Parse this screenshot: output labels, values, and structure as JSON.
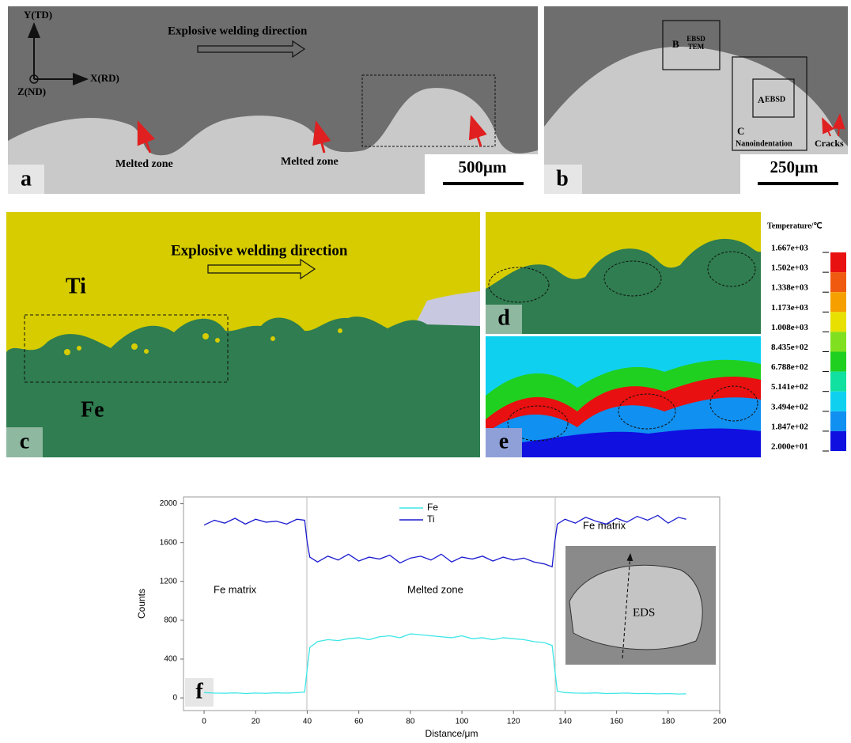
{
  "panel_a": {
    "letter": "a",
    "axis_y": "Y(TD)",
    "axis_x": "X(RD)",
    "axis_z": "Z(ND)",
    "direction": "Explosive welding direction",
    "labels": [
      "Melted zone",
      "Melted zone"
    ],
    "scale": "500μm"
  },
  "panel_b": {
    "letter": "b",
    "box_b": "B",
    "box_b_text": [
      "EBSD",
      "TEM"
    ],
    "box_a": "A",
    "box_a_text": "EBSD",
    "box_c": "C",
    "box_c_text": "Nanoindentation",
    "cracks": "Cracks",
    "scale": "250μm"
  },
  "panel_c": {
    "letter": "c",
    "direction": "Explosive welding direction",
    "top": "Ti",
    "bottom": "Fe"
  },
  "panel_d": {
    "letter": "d"
  },
  "panel_e": {
    "letter": "e"
  },
  "colorbar": {
    "title": "Temperature/℃",
    "labels": [
      "1.667e+03",
      "1.502e+03",
      "1.338e+03",
      "1.173e+03",
      "1.008e+03",
      "8.435e+02",
      "6.788e+02",
      "5.141e+02",
      "3.494e+02",
      "1.847e+02",
      "2.000e+01"
    ],
    "colors": [
      "#e81010",
      "#f05a10",
      "#f5a000",
      "#e8e000",
      "#80e020",
      "#20d020",
      "#10e0a0",
      "#10d0f0",
      "#1090f0",
      "#1010e0"
    ]
  },
  "chart_data": {
    "type": "line",
    "letter": "f",
    "xlabel": "Distance/μm",
    "ylabel": "Counts",
    "x": [
      0,
      4,
      8,
      12,
      16,
      20,
      24,
      28,
      32,
      36,
      39,
      40,
      41,
      44,
      48,
      52,
      56,
      60,
      64,
      68,
      72,
      76,
      80,
      84,
      88,
      92,
      96,
      100,
      104,
      108,
      112,
      116,
      120,
      124,
      128,
      132,
      135,
      136,
      137,
      140,
      144,
      148,
      152,
      156,
      160,
      164,
      168,
      172,
      176,
      180,
      184,
      187
    ],
    "series": [
      {
        "name": "Fe",
        "color": "#3ee6e6",
        "values": [
          55,
          50,
          48,
          52,
          45,
          50,
          47,
          53,
          49,
          55,
          60,
          300,
          520,
          580,
          600,
          590,
          610,
          620,
          600,
          630,
          640,
          620,
          660,
          650,
          640,
          630,
          620,
          640,
          610,
          620,
          600,
          620,
          610,
          600,
          580,
          570,
          540,
          300,
          70,
          55,
          50,
          48,
          52,
          45,
          47,
          50,
          44,
          46,
          42,
          45,
          40,
          42
        ]
      },
      {
        "name": "Ti",
        "color": "#1c1cd0",
        "values": [
          1780,
          1830,
          1800,
          1850,
          1790,
          1840,
          1810,
          1820,
          1790,
          1840,
          1830,
          1600,
          1450,
          1400,
          1460,
          1420,
          1480,
          1410,
          1450,
          1430,
          1470,
          1390,
          1440,
          1460,
          1420,
          1480,
          1400,
          1450,
          1430,
          1460,
          1410,
          1450,
          1420,
          1440,
          1400,
          1380,
          1350,
          1600,
          1790,
          1840,
          1800,
          1860,
          1820,
          1790,
          1850,
          1810,
          1870,
          1830,
          1880,
          1800,
          1860,
          1840
        ]
      }
    ],
    "xlim": [
      -8,
      200
    ],
    "ylim": [
      -130,
      2070
    ],
    "xticks": [
      0,
      20,
      40,
      60,
      80,
      100,
      120,
      140,
      160,
      180,
      200
    ],
    "yticks": [
      0,
      400,
      800,
      1200,
      1600,
      2000
    ],
    "annotations": [
      "Fe matrix",
      "Melted zone",
      "Fe matrix"
    ],
    "inset_label": "EDS"
  }
}
